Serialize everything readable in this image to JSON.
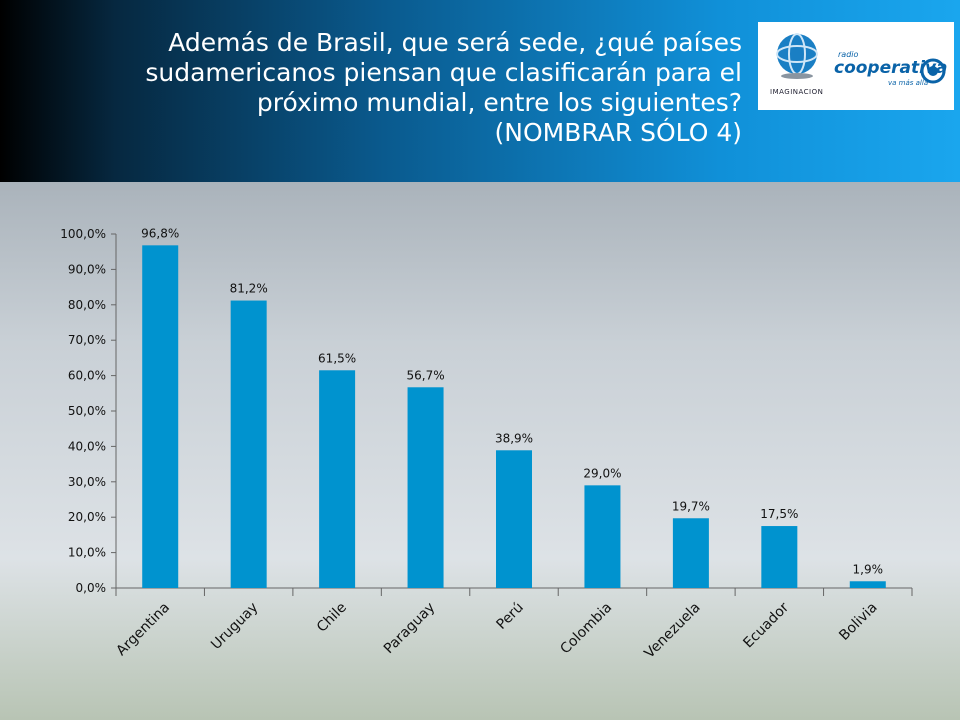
{
  "header": {
    "title_lines": [
      "Además de Brasil, que será sede, ¿qué países",
      "sudamericanos piensan que clasificarán para el",
      "próximo mundial, entre los siguientes?",
      "(NOMBRAR SÓLO 4)"
    ]
  },
  "logos": {
    "imaginacion": "IMAGINACION",
    "cooperativa_small": "radio",
    "cooperativa_big": "cooperativa",
    "cooperativa_tagline": "va más allá",
    "brand_color": "#0a63a8"
  },
  "chart_data": {
    "type": "bar",
    "categories": [
      "Argentina",
      "Uruguay",
      "Chile",
      "Paraguay",
      "Perú",
      "Colombia",
      "Venezuela",
      "Ecuador",
      "Bolivia"
    ],
    "values": [
      96.8,
      81.2,
      61.5,
      56.7,
      38.9,
      29.0,
      19.7,
      17.5,
      1.9
    ],
    "data_labels": [
      "96,8%",
      "81,2%",
      "61,5%",
      "56,7%",
      "38,9%",
      "29,0%",
      "19,7%",
      "17,5%",
      "1,9%"
    ],
    "ylim": [
      0,
      100
    ],
    "yticks": [
      0,
      10,
      20,
      30,
      40,
      50,
      60,
      70,
      80,
      90,
      100
    ],
    "ytick_labels": [
      "0,0%",
      "10,0%",
      "20,0%",
      "30,0%",
      "40,0%",
      "50,0%",
      "60,0%",
      "70,0%",
      "80,0%",
      "90,0%",
      "100,0%"
    ],
    "bar_color": "#0093cf",
    "grid": false,
    "legend": "none"
  }
}
